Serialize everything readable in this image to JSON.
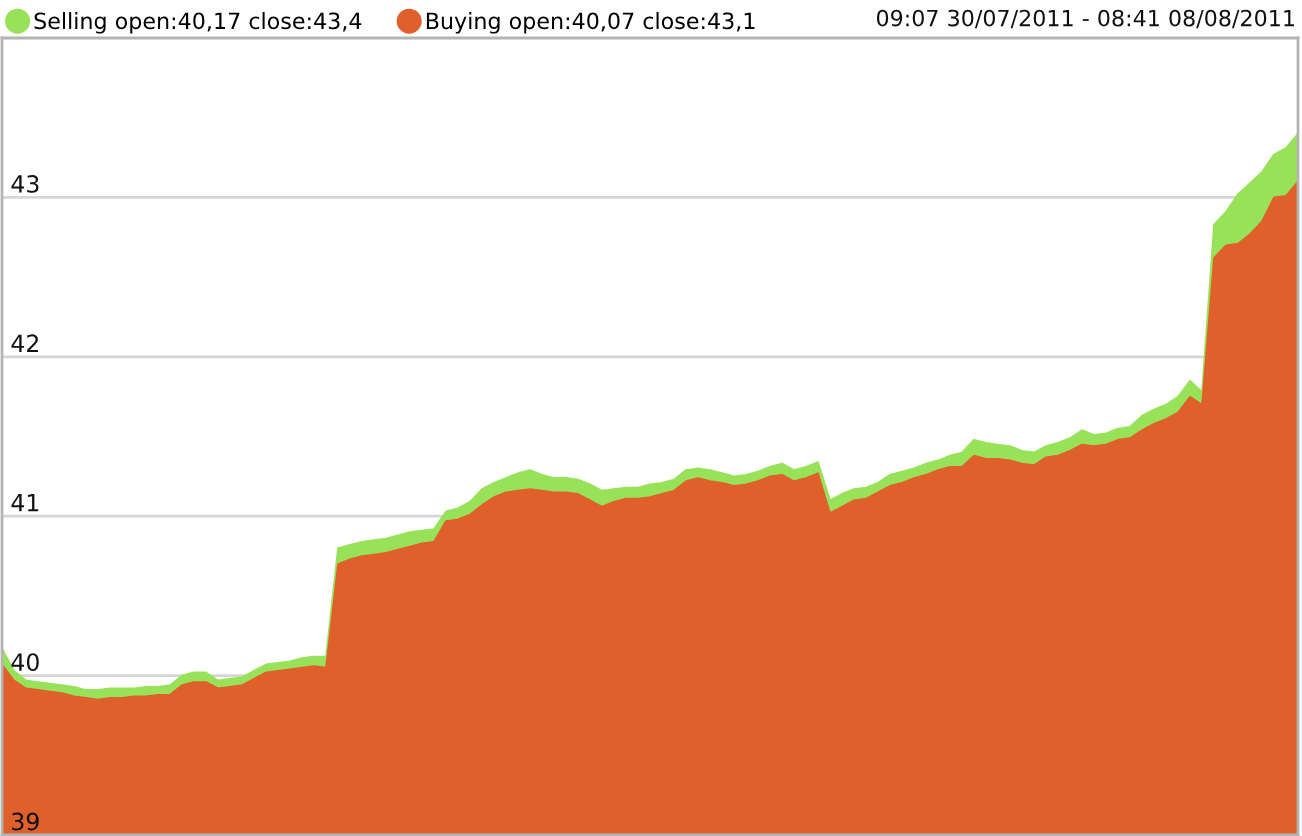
{
  "chart_data": {
    "type": "area",
    "categories": [
      null,
      null,
      null,
      null,
      null,
      null,
      null,
      null,
      null,
      null,
      null,
      null,
      null,
      null,
      null,
      null,
      null,
      null,
      null,
      null,
      null,
      null,
      null,
      null,
      null,
      null,
      null,
      null,
      null,
      null,
      null,
      null,
      null,
      null,
      null,
      null,
      null,
      null,
      null,
      null,
      null,
      null,
      null,
      null,
      null,
      null,
      null,
      null,
      null,
      null,
      null,
      null,
      null,
      null,
      null,
      null,
      null,
      null,
      null,
      null,
      null,
      null,
      null,
      null,
      null,
      null,
      null,
      null,
      null,
      null,
      null,
      null,
      null,
      null,
      null,
      null,
      null,
      null,
      null,
      null,
      null,
      null,
      null,
      null,
      null,
      null,
      null,
      null,
      null,
      null,
      null,
      null,
      null,
      null,
      null,
      null,
      null,
      null,
      null,
      null,
      null,
      null,
      null,
      null,
      null,
      null,
      null,
      null,
      null
    ],
    "series": [
      {
        "name": "Selling open:40,17 close:43,4",
        "color": "#98e25a",
        "values": [
          40.17,
          40.03,
          39.97,
          39.96,
          39.95,
          39.94,
          39.93,
          39.91,
          39.91,
          39.92,
          39.92,
          39.92,
          39.93,
          39.93,
          39.94,
          40.0,
          40.02,
          40.02,
          39.97,
          39.98,
          39.99,
          40.03,
          40.07,
          40.08,
          40.09,
          40.11,
          40.12,
          40.12,
          40.8,
          40.82,
          40.84,
          40.85,
          40.86,
          40.88,
          40.9,
          40.91,
          40.92,
          41.03,
          41.05,
          41.09,
          41.17,
          41.21,
          41.24,
          41.27,
          41.29,
          41.26,
          41.24,
          41.24,
          41.23,
          41.2,
          41.16,
          41.17,
          41.18,
          41.18,
          41.2,
          41.21,
          41.23,
          41.29,
          41.3,
          41.29,
          41.27,
          41.25,
          41.26,
          41.28,
          41.31,
          41.33,
          41.29,
          41.31,
          41.34,
          41.1,
          41.14,
          41.17,
          41.18,
          41.21,
          41.26,
          41.28,
          41.3,
          41.33,
          41.35,
          41.38,
          41.4,
          41.48,
          41.46,
          41.45,
          41.44,
          41.41,
          41.4,
          41.44,
          41.46,
          41.49,
          41.54,
          41.51,
          41.52,
          41.55,
          41.56,
          41.63,
          41.67,
          41.7,
          41.75,
          41.85,
          41.78,
          42.83,
          42.91,
          43.02,
          43.09,
          43.16,
          43.27,
          43.31,
          43.4
        ]
      },
      {
        "name": "Buying open:40,07 close:43,1",
        "color": "#e0602c",
        "values": [
          40.07,
          39.97,
          39.92,
          39.91,
          39.9,
          39.89,
          39.87,
          39.86,
          39.85,
          39.86,
          39.86,
          39.87,
          39.87,
          39.88,
          39.88,
          39.94,
          39.96,
          39.96,
          39.92,
          39.93,
          39.94,
          39.98,
          40.02,
          40.03,
          40.04,
          40.05,
          40.06,
          40.05,
          40.7,
          40.73,
          40.75,
          40.76,
          40.77,
          40.79,
          40.81,
          40.83,
          40.84,
          40.97,
          40.98,
          41.01,
          41.07,
          41.12,
          41.15,
          41.16,
          41.17,
          41.16,
          41.15,
          41.15,
          41.14,
          41.1,
          41.06,
          41.09,
          41.11,
          41.11,
          41.12,
          41.14,
          41.16,
          41.22,
          41.24,
          41.22,
          41.21,
          41.19,
          41.2,
          41.22,
          41.25,
          41.26,
          41.22,
          41.24,
          41.27,
          41.02,
          41.06,
          41.1,
          41.11,
          41.15,
          41.19,
          41.21,
          41.24,
          41.26,
          41.29,
          41.31,
          41.31,
          41.38,
          41.36,
          41.36,
          41.35,
          41.33,
          41.32,
          41.37,
          41.38,
          41.41,
          41.45,
          41.44,
          41.45,
          41.48,
          41.49,
          41.54,
          41.58,
          41.61,
          41.65,
          41.75,
          41.7,
          42.62,
          42.7,
          42.71,
          42.77,
          42.85,
          43.0,
          43.01,
          43.1
        ]
      }
    ],
    "ylim": [
      39,
      44
    ],
    "yticks": [
      39,
      40,
      41,
      42,
      43
    ],
    "grid": "y",
    "legend": "top left",
    "annotations": [
      "09:07 30/07/2011 - 08:41 08/08/2011"
    ]
  }
}
